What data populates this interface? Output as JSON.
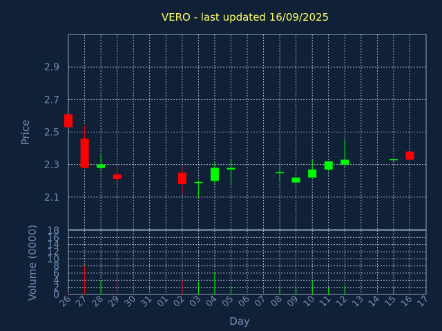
{
  "chart_data": {
    "type": "candlestick",
    "title": "VERO - last updated 16/09/2025",
    "xlabel": "Day",
    "price_panel": {
      "ylabel": "Price",
      "ylim": [
        1.9,
        3.1
      ],
      "yticks": [
        2.1,
        2.3,
        2.5,
        2.7,
        2.9
      ],
      "ytick_labels": [
        "2.1",
        "2.3",
        "2.5",
        "2.7",
        "2.9"
      ]
    },
    "volume_panel": {
      "ylabel": "Volume (0000)",
      "ylim": [
        0,
        18
      ],
      "yticks": [
        0,
        2,
        4,
        6,
        8,
        10,
        12,
        14,
        16,
        18
      ],
      "ytick_labels": [
        "0",
        "2",
        "4",
        "6",
        "8",
        "10",
        "12",
        "14",
        "16",
        "18"
      ]
    },
    "x_tick_labels": [
      "26",
      "27",
      "28",
      "29",
      "30",
      "31",
      "01",
      "02",
      "03",
      "04",
      "05",
      "06",
      "07",
      "08",
      "09",
      "10",
      "11",
      "12",
      "13",
      "14",
      "15",
      "16",
      "17"
    ],
    "candles": [
      {
        "day": "26",
        "open": 2.61,
        "high": 2.61,
        "low": 2.53,
        "close": 2.53,
        "volume": 0.5
      },
      {
        "day": "27",
        "open": 2.46,
        "high": 2.54,
        "low": 2.28,
        "close": 2.28,
        "volume": 8.0
      },
      {
        "day": "28",
        "open": 2.28,
        "high": 2.36,
        "low": 2.26,
        "close": 2.3,
        "volume": 4.0
      },
      {
        "day": "29",
        "open": 2.24,
        "high": 2.3,
        "low": 2.2,
        "close": 2.21,
        "volume": 4.5
      },
      {
        "day": "02",
        "open": 2.25,
        "high": 2.29,
        "low": 2.12,
        "close": 2.18,
        "volume": 4.0
      },
      {
        "day": "03",
        "open": 2.19,
        "high": 2.2,
        "low": 2.1,
        "close": 2.19,
        "volume": 3.5
      },
      {
        "day": "04",
        "open": 2.2,
        "high": 2.31,
        "low": 2.18,
        "close": 2.28,
        "volume": 6.0
      },
      {
        "day": "05",
        "open": 2.27,
        "high": 2.34,
        "low": 2.18,
        "close": 2.28,
        "volume": 2.5
      },
      {
        "day": "08",
        "open": 2.25,
        "high": 2.29,
        "low": 2.2,
        "close": 2.25,
        "volume": 2.0
      },
      {
        "day": "09",
        "open": 2.19,
        "high": 2.22,
        "low": 2.19,
        "close": 2.22,
        "volume": 2.0
      },
      {
        "day": "10",
        "open": 2.22,
        "high": 2.33,
        "low": 2.22,
        "close": 2.27,
        "volume": 4.0
      },
      {
        "day": "11",
        "open": 2.27,
        "high": 2.32,
        "low": 2.26,
        "close": 2.32,
        "volume": 2.0
      },
      {
        "day": "12",
        "open": 2.3,
        "high": 2.46,
        "low": 2.28,
        "close": 2.33,
        "volume": 2.5
      },
      {
        "day": "15",
        "open": 2.33,
        "high": 2.33,
        "low": 2.32,
        "close": 2.33,
        "volume": 2.0
      },
      {
        "day": "16",
        "open": 2.38,
        "high": 2.38,
        "low": 2.3,
        "close": 2.33,
        "volume": 2.0
      }
    ],
    "colors": {
      "up": "#00ff00",
      "down": "#ff0000",
      "title": "#ffff66",
      "axis_text": "#6f8fb5",
      "grid": "#c8d3df",
      "background": "#0f2037"
    }
  }
}
